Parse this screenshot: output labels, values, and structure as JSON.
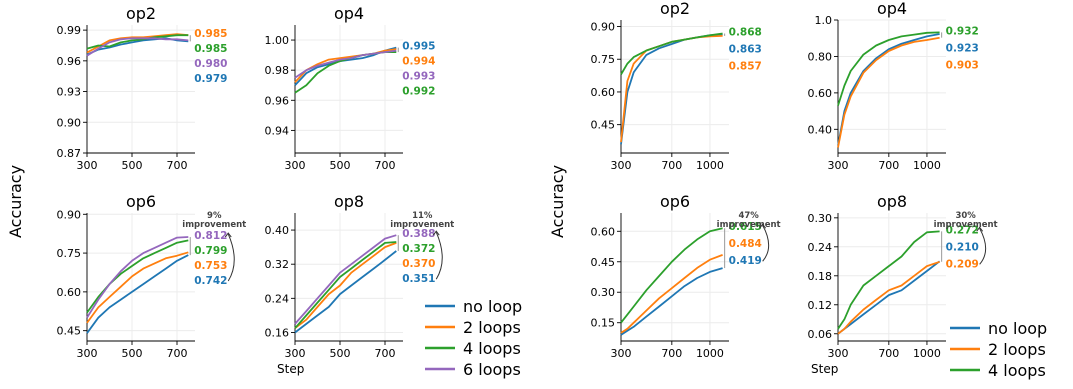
{
  "figure": {
    "ylabel_left": "Accuracy",
    "ylabel_right": "Accuracy",
    "xlabel_left": "Step",
    "xlabel_right": "Step",
    "legend_left": [
      "no loop",
      "2 loops",
      "4 loops",
      "6 loops"
    ],
    "legend_right": [
      "no loop",
      "2 loops",
      "4 loops"
    ]
  },
  "colors": {
    "no loop": "#1f77b4",
    "2 loops": "#ff7f0e",
    "4 loops": "#2ca02c",
    "6 loops": "#9467bd"
  },
  "chart_data": [
    {
      "type": "line",
      "title": "op2",
      "xlabel": "",
      "ylabel": "Accuracy",
      "xlim": [
        300,
        780
      ],
      "ylim": [
        0.87,
        0.995
      ],
      "xticks": [
        300,
        500,
        700
      ],
      "yticks": [
        0.87,
        0.9,
        0.93,
        0.96,
        0.99
      ],
      "x": [
        300,
        350,
        400,
        450,
        500,
        550,
        600,
        650,
        700,
        750
      ],
      "series": [
        {
          "name": "no loop",
          "values": [
            0.966,
            0.971,
            0.973,
            0.976,
            0.978,
            0.98,
            0.981,
            0.982,
            0.98,
            0.979
          ],
          "final_label": "0.979"
        },
        {
          "name": "2 loops",
          "values": [
            0.968,
            0.974,
            0.98,
            0.982,
            0.983,
            0.983,
            0.984,
            0.985,
            0.986,
            0.985
          ],
          "final_label": "0.985"
        },
        {
          "name": "4 loops",
          "values": [
            0.972,
            0.975,
            0.974,
            0.978,
            0.98,
            0.981,
            0.983,
            0.984,
            0.985,
            0.985
          ],
          "final_label": "0.985"
        },
        {
          "name": "6 loops",
          "values": [
            0.965,
            0.972,
            0.978,
            0.981,
            0.982,
            0.982,
            0.982,
            0.981,
            0.981,
            0.98
          ],
          "final_label": "0.980"
        }
      ],
      "label_order": [
        "2 loops",
        "4 loops",
        "6 loops",
        "no loop"
      ]
    },
    {
      "type": "line",
      "title": "op4",
      "xlabel": "",
      "ylabel": "",
      "xlim": [
        300,
        780
      ],
      "ylim": [
        0.925,
        1.01
      ],
      "xticks": [
        300,
        500,
        700
      ],
      "yticks": [
        0.94,
        0.96,
        0.98,
        1.0
      ],
      "x": [
        300,
        350,
        400,
        450,
        500,
        550,
        600,
        650,
        700,
        750
      ],
      "series": [
        {
          "name": "no loop",
          "values": [
            0.97,
            0.978,
            0.982,
            0.984,
            0.986,
            0.987,
            0.988,
            0.99,
            0.993,
            0.995
          ],
          "final_label": "0.995"
        },
        {
          "name": "2 loops",
          "values": [
            0.972,
            0.98,
            0.984,
            0.987,
            0.988,
            0.989,
            0.99,
            0.991,
            0.993,
            0.994
          ],
          "final_label": "0.994"
        },
        {
          "name": "4 loops",
          "values": [
            0.965,
            0.97,
            0.978,
            0.983,
            0.986,
            0.988,
            0.99,
            0.991,
            0.992,
            0.992
          ],
          "final_label": "0.992"
        },
        {
          "name": "6 loops",
          "values": [
            0.975,
            0.98,
            0.983,
            0.985,
            0.987,
            0.988,
            0.99,
            0.991,
            0.992,
            0.993
          ],
          "final_label": "0.993"
        }
      ],
      "label_order": [
        "no loop",
        "2 loops",
        "6 loops",
        "4 loops"
      ]
    },
    {
      "type": "line",
      "title": "op6",
      "xlabel": "",
      "ylabel": "Accuracy",
      "xlim": [
        300,
        780
      ],
      "ylim": [
        0.41,
        0.905
      ],
      "xticks": [
        300,
        500,
        700
      ],
      "yticks": [
        0.45,
        0.6,
        0.75,
        0.9
      ],
      "x": [
        300,
        350,
        400,
        450,
        500,
        550,
        600,
        650,
        700,
        750
      ],
      "series": [
        {
          "name": "no loop",
          "values": [
            0.44,
            0.5,
            0.54,
            0.57,
            0.6,
            0.63,
            0.66,
            0.69,
            0.72,
            0.742
          ],
          "final_label": "0.742"
        },
        {
          "name": "2 loops",
          "values": [
            0.48,
            0.54,
            0.58,
            0.62,
            0.66,
            0.69,
            0.71,
            0.73,
            0.74,
            0.753
          ],
          "final_label": "0.753"
        },
        {
          "name": "4 loops",
          "values": [
            0.52,
            0.58,
            0.63,
            0.67,
            0.7,
            0.73,
            0.75,
            0.77,
            0.79,
            0.799
          ],
          "final_label": "0.799"
        },
        {
          "name": "6 loops",
          "values": [
            0.5,
            0.57,
            0.63,
            0.68,
            0.72,
            0.75,
            0.77,
            0.79,
            0.81,
            0.812
          ],
          "final_label": "0.812"
        }
      ],
      "label_order": [
        "6 loops",
        "4 loops",
        "2 loops",
        "no loop"
      ],
      "annotation": "9%\nimprovement"
    },
    {
      "type": "line",
      "title": "op8",
      "xlabel": "Step",
      "ylabel": "",
      "xlim": [
        300,
        780
      ],
      "ylim": [
        0.14,
        0.44
      ],
      "xticks": [
        300,
        500,
        700
      ],
      "yticks": [
        0.16,
        0.24,
        0.32,
        0.4
      ],
      "x": [
        300,
        350,
        400,
        450,
        500,
        550,
        600,
        650,
        700,
        750
      ],
      "series": [
        {
          "name": "no loop",
          "values": [
            0.16,
            0.18,
            0.2,
            0.22,
            0.25,
            0.27,
            0.29,
            0.31,
            0.33,
            0.351
          ],
          "final_label": "0.351"
        },
        {
          "name": "2 loops",
          "values": [
            0.17,
            0.19,
            0.22,
            0.25,
            0.27,
            0.3,
            0.32,
            0.34,
            0.36,
            0.37
          ],
          "final_label": "0.370"
        },
        {
          "name": "4 loops",
          "values": [
            0.17,
            0.2,
            0.23,
            0.26,
            0.29,
            0.31,
            0.33,
            0.35,
            0.37,
            0.372
          ],
          "final_label": "0.372"
        },
        {
          "name": "6 loops",
          "values": [
            0.18,
            0.21,
            0.24,
            0.27,
            0.3,
            0.32,
            0.34,
            0.36,
            0.38,
            0.388
          ],
          "final_label": "0.388"
        }
      ],
      "label_order": [
        "6 loops",
        "4 loops",
        "2 loops",
        "no loop"
      ],
      "annotation": "11%\nimprovement"
    },
    {
      "type": "line",
      "title": "op2",
      "xlabel": "",
      "ylabel": "Accuracy",
      "xlim": [
        300,
        1150
      ],
      "ylim": [
        0.32,
        0.93
      ],
      "xticks": [
        300,
        700,
        1000
      ],
      "yticks": [
        0.45,
        0.6,
        0.75,
        0.9
      ],
      "x": [
        300,
        350,
        400,
        500,
        600,
        700,
        800,
        900,
        1000,
        1100
      ],
      "series": [
        {
          "name": "no loop",
          "values": [
            0.36,
            0.6,
            0.69,
            0.77,
            0.8,
            0.82,
            0.84,
            0.85,
            0.86,
            0.863
          ],
          "final_label": "0.863"
        },
        {
          "name": "2 loops",
          "values": [
            0.37,
            0.65,
            0.73,
            0.79,
            0.81,
            0.83,
            0.84,
            0.85,
            0.855,
            0.857
          ],
          "final_label": "0.857"
        },
        {
          "name": "4 loops",
          "values": [
            0.68,
            0.73,
            0.76,
            0.79,
            0.81,
            0.83,
            0.84,
            0.85,
            0.86,
            0.868
          ],
          "final_label": "0.868"
        }
      ],
      "label_order": [
        "4 loops",
        "no loop",
        "2 loops"
      ]
    },
    {
      "type": "line",
      "title": "op4",
      "xlabel": "",
      "ylabel": "",
      "xlim": [
        300,
        1150
      ],
      "ylim": [
        0.27,
        1.0
      ],
      "xticks": [
        300,
        700,
        1000
      ],
      "yticks": [
        0.4,
        0.6,
        0.8,
        1.0
      ],
      "x": [
        300,
        350,
        400,
        500,
        600,
        700,
        800,
        900,
        1000,
        1100
      ],
      "series": [
        {
          "name": "no loop",
          "values": [
            0.31,
            0.5,
            0.6,
            0.72,
            0.79,
            0.84,
            0.87,
            0.89,
            0.91,
            0.923
          ],
          "final_label": "0.923"
        },
        {
          "name": "2 loops",
          "values": [
            0.3,
            0.48,
            0.58,
            0.71,
            0.78,
            0.83,
            0.86,
            0.88,
            0.89,
            0.903
          ],
          "final_label": "0.903"
        },
        {
          "name": "4 loops",
          "values": [
            0.53,
            0.64,
            0.72,
            0.81,
            0.86,
            0.89,
            0.91,
            0.92,
            0.93,
            0.932
          ],
          "final_label": "0.932"
        }
      ],
      "label_order": [
        "4 loops",
        "no loop",
        "2 loops"
      ]
    },
    {
      "type": "line",
      "title": "op6",
      "xlabel": "",
      "ylabel": "Accuracy",
      "xlim": [
        300,
        1150
      ],
      "ylim": [
        0.06,
        0.69
      ],
      "xticks": [
        300,
        700,
        1000
      ],
      "yticks": [
        0.15,
        0.3,
        0.45,
        0.6
      ],
      "x": [
        300,
        350,
        400,
        500,
        600,
        700,
        800,
        900,
        1000,
        1100
      ],
      "series": [
        {
          "name": "no loop",
          "values": [
            0.09,
            0.11,
            0.13,
            0.18,
            0.23,
            0.28,
            0.33,
            0.37,
            0.4,
            0.419
          ],
          "final_label": "0.419"
        },
        {
          "name": "2 loops",
          "values": [
            0.1,
            0.12,
            0.15,
            0.21,
            0.27,
            0.32,
            0.37,
            0.42,
            0.46,
            0.484
          ],
          "final_label": "0.484"
        },
        {
          "name": "4 loops",
          "values": [
            0.15,
            0.19,
            0.23,
            0.31,
            0.38,
            0.45,
            0.51,
            0.56,
            0.6,
            0.615
          ],
          "final_label": "0.615"
        }
      ],
      "label_order": [
        "4 loops",
        "2 loops",
        "no loop"
      ],
      "annotation": "47%\nimprovement"
    },
    {
      "type": "line",
      "title": "op8",
      "xlabel": "Step",
      "ylabel": "",
      "xlim": [
        300,
        1150
      ],
      "ylim": [
        0.045,
        0.31
      ],
      "xticks": [
        300,
        700,
        1000
      ],
      "yticks": [
        0.06,
        0.12,
        0.18,
        0.24,
        0.3
      ],
      "x": [
        300,
        350,
        400,
        500,
        600,
        700,
        800,
        900,
        1000,
        1100
      ],
      "series": [
        {
          "name": "no loop",
          "values": [
            0.06,
            0.07,
            0.08,
            0.1,
            0.12,
            0.14,
            0.15,
            0.17,
            0.19,
            0.21
          ],
          "final_label": "0.210"
        },
        {
          "name": "2 loops",
          "values": [
            0.06,
            0.07,
            0.085,
            0.11,
            0.13,
            0.15,
            0.16,
            0.18,
            0.2,
            0.209
          ],
          "final_label": "0.209"
        },
        {
          "name": "4 loops",
          "values": [
            0.07,
            0.09,
            0.12,
            0.16,
            0.18,
            0.2,
            0.22,
            0.25,
            0.27,
            0.272
          ],
          "final_label": "0.272"
        }
      ],
      "label_order": [
        "4 loops",
        "no loop",
        "2 loops"
      ],
      "annotation": "30%\nimprovement"
    }
  ]
}
